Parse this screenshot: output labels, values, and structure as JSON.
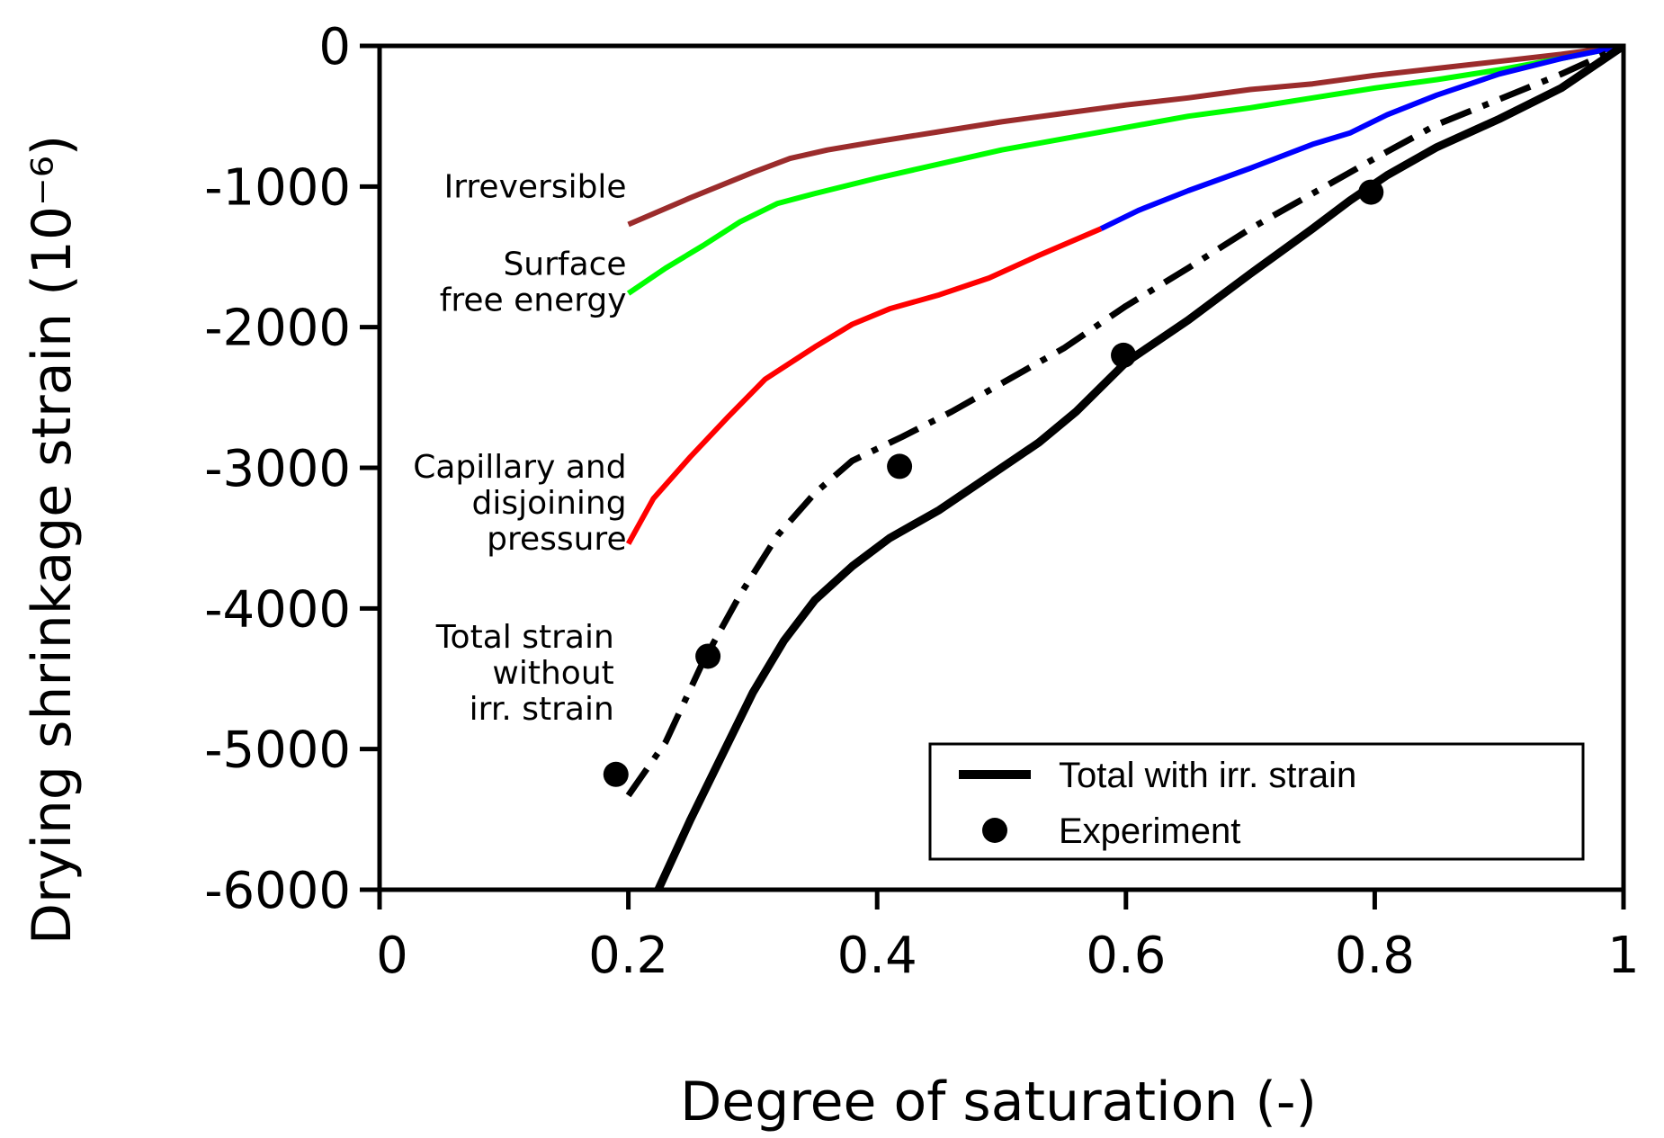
{
  "chart_data": {
    "type": "line",
    "xlabel": "Degree of saturation (-)",
    "ylabel": "Drying shrinkage strain (10⁻⁶)",
    "xlim": [
      0,
      1
    ],
    "ylim": [
      -6000,
      0
    ],
    "x_ticks": [
      0,
      0.2,
      0.4,
      0.6,
      0.8,
      1
    ],
    "x_tick_labels": [
      "0",
      "0.2",
      "0.4",
      "0.6",
      "0.8",
      "1"
    ],
    "y_ticks": [
      0,
      -1000,
      -2000,
      -3000,
      -4000,
      -5000,
      -6000
    ],
    "y_tick_labels": [
      "0",
      "-1000",
      "-2000",
      "-3000",
      "-4000",
      "-5000",
      "-6000"
    ],
    "legend_position": "bottom-right",
    "series": [
      {
        "name": "Irreversible",
        "style": "solid",
        "color": "#9b2c2c",
        "x": [
          0.2,
          0.25,
          0.3,
          0.33,
          0.36,
          0.4,
          0.45,
          0.5,
          0.55,
          0.6,
          0.65,
          0.7,
          0.75,
          0.8,
          0.85,
          0.9,
          0.95,
          1.0
        ],
        "y": [
          -1270,
          -1080,
          -900,
          -800,
          -740,
          -680,
          -610,
          -540,
          -480,
          -420,
          -370,
          -310,
          -270,
          -210,
          -160,
          -110,
          -60,
          0
        ]
      },
      {
        "name": "Surface free energy",
        "style": "solid",
        "color": "#00ff00",
        "x": [
          0.2,
          0.23,
          0.26,
          0.29,
          0.32,
          0.35,
          0.4,
          0.45,
          0.5,
          0.55,
          0.6,
          0.65,
          0.7,
          0.75,
          0.8,
          0.85,
          0.9,
          0.95,
          1.0
        ],
        "y": [
          -1760,
          -1580,
          -1420,
          -1250,
          -1120,
          -1050,
          -940,
          -840,
          -740,
          -660,
          -580,
          -500,
          -440,
          -370,
          -300,
          -240,
          -170,
          -90,
          0
        ]
      },
      {
        "name": "Capillary and disjoining pressure",
        "style": "solid",
        "color": "#ff0000",
        "x": [
          0.2,
          0.22,
          0.25,
          0.28,
          0.31,
          0.35,
          0.38,
          0.41,
          0.45,
          0.49,
          0.53,
          0.58
        ],
        "y": [
          -3540,
          -3220,
          -2920,
          -2640,
          -2370,
          -2140,
          -1980,
          -1870,
          -1770,
          -1650,
          -1490,
          -1300
        ]
      },
      {
        "name": "Capillary and disjoining pressure (high saturation)",
        "style": "solid",
        "color": "#0000ff",
        "x": [
          0.58,
          0.61,
          0.65,
          0.7,
          0.75,
          0.78,
          0.81,
          0.85,
          0.9,
          0.95,
          1.0
        ],
        "y": [
          -1300,
          -1170,
          -1030,
          -870,
          -700,
          -620,
          -490,
          -350,
          -200,
          -90,
          0
        ]
      },
      {
        "name": "Total strain without irr. strain",
        "style": "dashdot",
        "color": "#000000",
        "x": [
          0.2,
          0.23,
          0.26,
          0.29,
          0.32,
          0.35,
          0.38,
          0.42,
          0.46,
          0.5,
          0.55,
          0.6,
          0.65,
          0.7,
          0.75,
          0.8,
          0.85,
          0.9,
          0.95,
          1.0
        ],
        "y": [
          -5330,
          -4950,
          -4380,
          -3900,
          -3480,
          -3180,
          -2950,
          -2780,
          -2600,
          -2400,
          -2150,
          -1850,
          -1580,
          -1300,
          -1050,
          -800,
          -560,
          -380,
          -200,
          0
        ]
      },
      {
        "name": "Total with irr. strain",
        "style": "solid",
        "color": "#000000",
        "x": [
          0.224,
          0.25,
          0.275,
          0.3,
          0.325,
          0.35,
          0.38,
          0.41,
          0.45,
          0.5,
          0.53,
          0.56,
          0.6,
          0.65,
          0.7,
          0.75,
          0.78,
          0.81,
          0.85,
          0.9,
          0.95,
          1.0
        ],
        "y": [
          -6000,
          -5500,
          -5050,
          -4600,
          -4230,
          -3940,
          -3700,
          -3500,
          -3300,
          -3000,
          -2820,
          -2600,
          -2250,
          -1950,
          -1620,
          -1300,
          -1100,
          -920,
          -720,
          -520,
          -300,
          0
        ]
      },
      {
        "name": "Experiment",
        "style": "markers",
        "color": "#000000",
        "x": [
          0.19,
          0.264,
          0.418,
          0.598,
          0.797
        ],
        "y": [
          -5180,
          -4340,
          -2990,
          -2200,
          -1040
        ]
      }
    ],
    "annotations": [
      {
        "lines": [
          "Irreversible"
        ],
        "anchor": [
          0.2,
          -1000
        ]
      },
      {
        "lines": [
          "Surface",
          "free energy"
        ],
        "anchor": [
          0.2,
          -1680
        ]
      },
      {
        "lines": [
          "Capillary and",
          "disjoining",
          "pressure"
        ],
        "anchor": [
          0.2,
          -3250
        ]
      },
      {
        "lines": [
          "Total strain",
          "without",
          "irr. strain"
        ],
        "anchor": [
          0.19,
          -4460
        ]
      }
    ],
    "legend": [
      {
        "label": "Total with irr. strain",
        "marker": "line"
      },
      {
        "label": "Experiment",
        "marker": "dot"
      }
    ]
  }
}
